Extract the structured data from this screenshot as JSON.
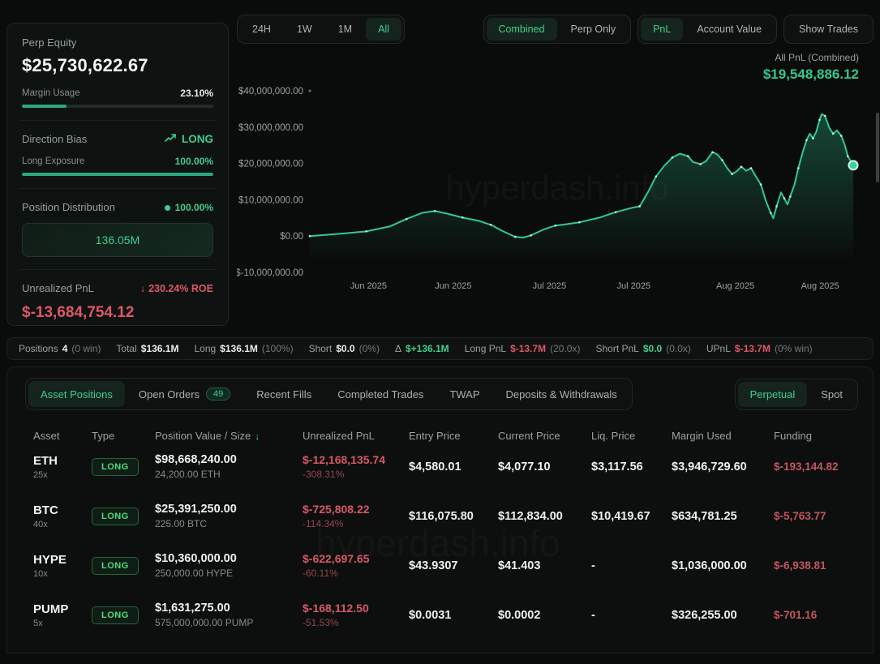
{
  "colors": {
    "accent_green": "#3ecf8e",
    "line_green": "#2fc993",
    "badge_green": "#4ade80",
    "red": "#dd5866",
    "dim_red": "#96444e",
    "muted": "#9aa39e",
    "panel_bg": "#0e1211",
    "page_bg": "#0a0c0b"
  },
  "icons": {
    "trend_up": "trend-up",
    "roe_down": "↓",
    "sort_desc": "↓",
    "distribution_dot": "green-dot"
  },
  "stats_panel": {
    "perp_equity": {
      "label": "Perp Equity",
      "value": "$25,730,622.67",
      "margin_label": "Margin Usage",
      "margin_value": "23.10%",
      "margin_pct": 23.1
    },
    "direction": {
      "label": "Direction Bias",
      "value": "LONG",
      "exposure_label": "Long Exposure",
      "exposure_value": "100.00%",
      "exposure_pct": 100
    },
    "distribution": {
      "label": "Position Distribution",
      "pct": "100.00%",
      "box_value": "136.05M"
    },
    "unrealized": {
      "label": "Unrealized PnL",
      "roe": "230.24% ROE",
      "value": "$-13,684,754.12"
    }
  },
  "chart": {
    "range_buttons": [
      {
        "label": "24H",
        "active": false
      },
      {
        "label": "1W",
        "active": false
      },
      {
        "label": "1M",
        "active": false
      },
      {
        "label": "All",
        "active": true
      }
    ],
    "mode_buttons": [
      {
        "label": "Combined",
        "active": true
      },
      {
        "label": "Perp Only",
        "active": false
      }
    ],
    "metric_buttons": [
      {
        "label": "PnL",
        "active": true
      },
      {
        "label": "Account Value",
        "active": false
      }
    ],
    "trade_buttons": [
      {
        "label": "Show Trades",
        "active": false
      }
    ],
    "pnl_label": "All PnL (Combined)",
    "pnl_value": "$19,548,886.12",
    "watermark": "hyperdash.info",
    "chart_data": {
      "type": "line",
      "title": "All PnL (Combined)",
      "value_unit": "USD millions",
      "ylim": [
        -10000000,
        40000000
      ],
      "grid": false,
      "legend": "none",
      "final_value": 19548886.12,
      "y_ticks": [
        {
          "label": "$40,000,000.00",
          "value": 40
        },
        {
          "label": "$30,000,000.00",
          "value": 30
        },
        {
          "label": "$20,000,000.00",
          "value": 20
        },
        {
          "label": "$10,000,000.00",
          "value": 10
        },
        {
          "label": "$0.00",
          "value": 0
        },
        {
          "label": "$-10,000,000.00",
          "value": -10
        }
      ],
      "x_ticks": [
        {
          "label": "Jun 2025",
          "f": 0.108
        },
        {
          "label": "Jun 2025",
          "f": 0.264
        },
        {
          "label": "Jul 2025",
          "f": 0.441
        },
        {
          "label": "Jul 2025",
          "f": 0.596
        },
        {
          "label": "Aug 2025",
          "f": 0.783
        },
        {
          "label": "Aug 2025",
          "f": 0.939
        }
      ],
      "points": [
        [
          0.0,
          0.0
        ],
        [
          0.059,
          0.7
        ],
        [
          0.104,
          1.3
        ],
        [
          0.148,
          2.7
        ],
        [
          0.178,
          4.7
        ],
        [
          0.207,
          6.4
        ],
        [
          0.23,
          6.9
        ],
        [
          0.252,
          6.2
        ],
        [
          0.281,
          5.1
        ],
        [
          0.311,
          4.2
        ],
        [
          0.333,
          3.1
        ],
        [
          0.356,
          1.3
        ],
        [
          0.378,
          -0.2
        ],
        [
          0.393,
          -0.4
        ],
        [
          0.407,
          0.2
        ],
        [
          0.43,
          1.8
        ],
        [
          0.452,
          2.9
        ],
        [
          0.474,
          3.3
        ],
        [
          0.496,
          3.8
        ],
        [
          0.533,
          5.1
        ],
        [
          0.563,
          6.6
        ],
        [
          0.593,
          7.8
        ],
        [
          0.607,
          8.2
        ],
        [
          0.622,
          12.0
        ],
        [
          0.637,
          16.4
        ],
        [
          0.652,
          19.3
        ],
        [
          0.667,
          21.6
        ],
        [
          0.681,
          22.7
        ],
        [
          0.696,
          22.0
        ],
        [
          0.705,
          20.4
        ],
        [
          0.719,
          19.8
        ],
        [
          0.729,
          20.6
        ],
        [
          0.741,
          23.1
        ],
        [
          0.75,
          22.5
        ],
        [
          0.759,
          20.9
        ],
        [
          0.768,
          18.7
        ],
        [
          0.777,
          17.1
        ],
        [
          0.785,
          17.8
        ],
        [
          0.794,
          19.1
        ],
        [
          0.803,
          18.0
        ],
        [
          0.812,
          18.7
        ],
        [
          0.821,
          16.4
        ],
        [
          0.83,
          14.2
        ],
        [
          0.839,
          9.8
        ],
        [
          0.848,
          6.4
        ],
        [
          0.853,
          4.9
        ],
        [
          0.859,
          8.2
        ],
        [
          0.867,
          12.0
        ],
        [
          0.873,
          10.4
        ],
        [
          0.879,
          8.7
        ],
        [
          0.884,
          10.9
        ],
        [
          0.892,
          14.2
        ],
        [
          0.899,
          18.7
        ],
        [
          0.907,
          23.1
        ],
        [
          0.914,
          26.4
        ],
        [
          0.92,
          28.2
        ],
        [
          0.926,
          26.9
        ],
        [
          0.932,
          28.7
        ],
        [
          0.938,
          32.0
        ],
        [
          0.942,
          33.6
        ],
        [
          0.948,
          33.1
        ],
        [
          0.956,
          29.8
        ],
        [
          0.963,
          28.2
        ],
        [
          0.97,
          29.1
        ],
        [
          0.978,
          27.6
        ],
        [
          0.984,
          25.3
        ],
        [
          0.99,
          22.0
        ],
        [
          1.0,
          19.5
        ]
      ]
    }
  },
  "summary": {
    "items": [
      {
        "label": "Positions",
        "value": "4",
        "cls": "white",
        "sub": "(0 win)"
      },
      {
        "label": "Total",
        "value": "$136.1M",
        "cls": "white",
        "sub": ""
      },
      {
        "label": "Long",
        "value": "$136.1M",
        "cls": "white",
        "sub": "(100%)"
      },
      {
        "label": "Short",
        "value": "$0.0",
        "cls": "white",
        "sub": "(0%)"
      },
      {
        "label": "Δ",
        "value": "$+136.1M",
        "cls": "green",
        "sub": ""
      },
      {
        "label": "Long PnL",
        "value": "$-13.7M",
        "cls": "red",
        "sub": "(20.0x)"
      },
      {
        "label": "Short PnL",
        "value": "$0.0",
        "cls": "green",
        "sub": "(0.0x)"
      },
      {
        "label": "UPnL",
        "value": "$-13.7M",
        "cls": "red",
        "sub": "(0% win)"
      }
    ]
  },
  "tabs": {
    "left": [
      {
        "label": "Asset Positions",
        "active": true
      },
      {
        "label": "Open Orders",
        "active": false,
        "badge": "49"
      },
      {
        "label": "Recent Fills",
        "active": false
      },
      {
        "label": "Completed Trades",
        "active": false
      },
      {
        "label": "TWAP",
        "active": false
      },
      {
        "label": "Deposits & Withdrawals",
        "active": false
      }
    ],
    "right": [
      {
        "label": "Perpetual",
        "active": true
      },
      {
        "label": "Spot",
        "active": false
      }
    ]
  },
  "table": {
    "headers": [
      "Asset",
      "Type",
      "Position Value / Size",
      "Unrealized PnL",
      "Entry Price",
      "Current Price",
      "Liq. Price",
      "Margin Used",
      "Funding"
    ],
    "sort_header_index": 2,
    "rows": [
      {
        "asset": "ETH",
        "leverage": "25x",
        "type": "LONG",
        "value": "$98,668,240.00",
        "size": "24,200.00 ETH",
        "upnl": "$-12,168,135.74",
        "upnl_pct": "-308.31%",
        "entry": "$4,580.01",
        "current": "$4,077.10",
        "liq": "$3,117.56",
        "margin": "$3,946,729.60",
        "funding": "$-193,144.82"
      },
      {
        "asset": "BTC",
        "leverage": "40x",
        "type": "LONG",
        "value": "$25,391,250.00",
        "size": "225.00 BTC",
        "upnl": "$-725,808.22",
        "upnl_pct": "-114.34%",
        "entry": "$116,075.80",
        "current": "$112,834.00",
        "liq": "$10,419.67",
        "margin": "$634,781.25",
        "funding": "$-5,763.77"
      },
      {
        "asset": "HYPE",
        "leverage": "10x",
        "type": "LONG",
        "value": "$10,360,000.00",
        "size": "250,000.00 HYPE",
        "upnl": "$-622,697.65",
        "upnl_pct": "-60.11%",
        "entry": "$43.9307",
        "current": "$41.403",
        "liq": "-",
        "margin": "$1,036,000.00",
        "funding": "$-6,938.81"
      },
      {
        "asset": "PUMP",
        "leverage": "5x",
        "type": "LONG",
        "value": "$1,631,275.00",
        "size": "575,000,000.00 PUMP",
        "upnl": "$-168,112.50",
        "upnl_pct": "-51.53%",
        "entry": "$0.0031",
        "current": "$0.0002",
        "liq": "-",
        "margin": "$326,255.00",
        "funding": "$-701.16"
      }
    ]
  }
}
